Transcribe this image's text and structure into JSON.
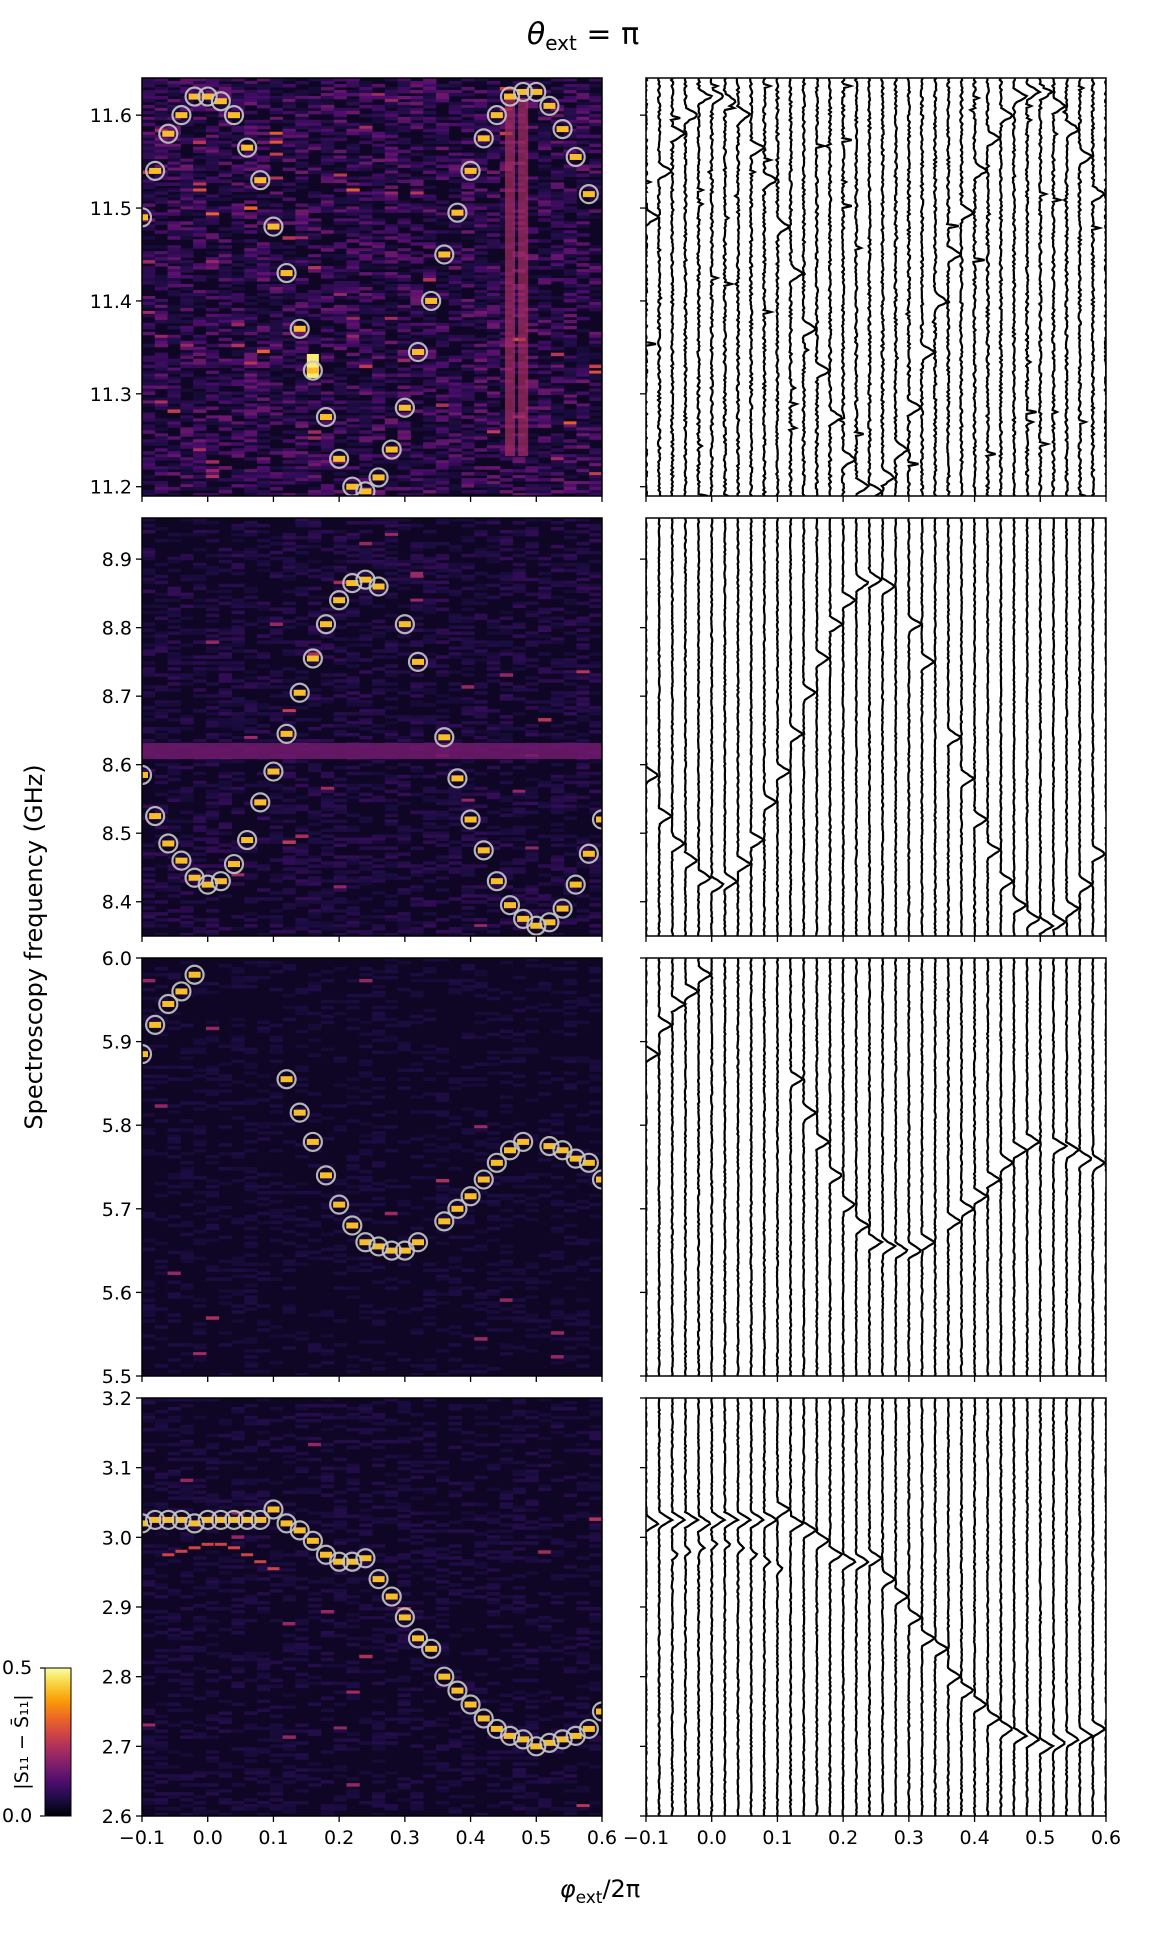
{
  "figure": {
    "title_theta": "θ",
    "title_sub": "ext",
    "title_eq": " = π",
    "ylabel": "Spectroscopy frequency (GHz)",
    "xlabel_phi": "φ",
    "xlabel_sub": "ext",
    "xlabel_rest": "/2π"
  },
  "colorbar": {
    "label": "|S₁₁ − S̄₁₁|",
    "min_label": "0.0",
    "max_label": "0.5",
    "vmin": 0.0,
    "vmax": 0.5,
    "stops": [
      "#000004",
      "#1b0c41",
      "#4a0c6b",
      "#781c6d",
      "#a52c60",
      "#cf4446",
      "#ed6925",
      "#fb9b06",
      "#f7d13d",
      "#fcffa4"
    ]
  },
  "colors": {
    "heatmap_bg": "#1a0b2e",
    "marker_edge": "#c8c8c8",
    "trace": "#000000"
  },
  "chart_data": [
    {
      "type": "heatmap",
      "panel": "top",
      "xlim": [
        -0.1,
        0.6
      ],
      "ylim": [
        11.19,
        11.64
      ],
      "x_ticks": [
        -0.1,
        0.0,
        0.1,
        0.2,
        0.3,
        0.4,
        0.5,
        0.6
      ],
      "y_ticks": [
        11.2,
        11.3,
        11.4,
        11.5,
        11.6
      ],
      "y_tick_labels": [
        "11.2",
        "11.3",
        "11.4",
        "11.5",
        "11.6"
      ],
      "noise_level": 0.75,
      "resonance_x": [
        -0.1,
        -0.08,
        -0.06,
        -0.04,
        -0.02,
        0.0,
        0.02,
        0.04,
        0.06,
        0.08,
        0.1,
        0.12,
        0.14,
        0.16,
        0.18,
        0.2,
        0.22,
        0.24,
        0.26,
        0.28,
        0.3,
        0.32,
        0.34,
        0.36,
        0.38,
        0.4,
        0.42,
        0.44,
        0.46,
        0.48,
        0.5,
        0.52,
        0.54,
        0.56,
        0.58,
        0.6
      ],
      "resonance_y": [
        11.49,
        11.54,
        11.58,
        11.6,
        11.62,
        11.62,
        11.615,
        11.6,
        11.565,
        11.53,
        11.48,
        11.43,
        11.37,
        11.325,
        11.275,
        11.23,
        11.2,
        11.195,
        11.21,
        11.24,
        11.285,
        11.345,
        11.4,
        11.45,
        11.495,
        11.54,
        11.575,
        11.6,
        11.62,
        11.625,
        11.625,
        11.61,
        11.585,
        11.555,
        11.515,
        null
      ],
      "bright_columns": [
        0.46,
        0.48
      ],
      "bright_spot": {
        "x": 0.16,
        "y": 11.33
      }
    },
    {
      "type": "heatmap",
      "panel": "second",
      "xlim": [
        -0.1,
        0.6
      ],
      "ylim": [
        8.35,
        8.96
      ],
      "x_ticks": [
        -0.1,
        0.0,
        0.1,
        0.2,
        0.3,
        0.4,
        0.5,
        0.6
      ],
      "y_ticks": [
        8.4,
        8.5,
        8.6,
        8.7,
        8.8,
        8.9
      ],
      "y_tick_labels": [
        "8.4",
        "8.5",
        "8.6",
        "8.7",
        "8.8",
        "8.9"
      ],
      "noise_level": 0.35,
      "horizontal_band": 8.62,
      "resonance_x": [
        -0.1,
        -0.08,
        -0.06,
        -0.04,
        -0.02,
        0.0,
        0.02,
        0.04,
        0.06,
        0.08,
        0.1,
        0.12,
        0.14,
        0.16,
        0.18,
        0.2,
        0.22,
        0.24,
        0.26,
        0.3,
        0.32,
        0.36,
        0.38,
        0.4,
        0.42,
        0.44,
        0.46,
        0.48,
        0.5,
        0.52,
        0.54,
        0.56,
        0.58,
        0.6
      ],
      "resonance_y": [
        8.585,
        8.525,
        8.485,
        8.46,
        8.435,
        8.425,
        8.43,
        8.455,
        8.49,
        8.545,
        8.59,
        8.645,
        8.705,
        8.755,
        8.805,
        8.84,
        8.865,
        8.87,
        8.86,
        8.805,
        8.75,
        8.64,
        8.58,
        8.52,
        8.475,
        8.43,
        8.395,
        8.375,
        8.365,
        8.37,
        8.39,
        8.425,
        8.47,
        8.52
      ]
    },
    {
      "type": "heatmap",
      "panel": "third",
      "xlim": [
        -0.1,
        0.6
      ],
      "ylim": [
        5.5,
        6.0
      ],
      "x_ticks": [
        -0.1,
        0.0,
        0.1,
        0.2,
        0.3,
        0.4,
        0.5,
        0.6
      ],
      "y_ticks": [
        5.5,
        5.6,
        5.7,
        5.8,
        5.9,
        6.0
      ],
      "y_tick_labels": [
        "5.5",
        "5.6",
        "5.7",
        "5.8",
        "5.9",
        "6.0"
      ],
      "noise_level": 0.2,
      "resonance_x": [
        -0.1,
        -0.08,
        -0.06,
        -0.04,
        -0.02,
        0.12,
        0.14,
        0.16,
        0.18,
        0.2,
        0.22,
        0.24,
        0.26,
        0.28,
        0.3,
        0.32,
        0.36,
        0.38,
        0.4,
        0.42,
        0.44,
        0.46,
        0.48,
        0.52,
        0.54,
        0.56,
        0.58,
        0.6
      ],
      "resonance_y": [
        5.885,
        5.92,
        5.945,
        5.96,
        5.98,
        5.855,
        5.815,
        5.78,
        5.74,
        5.705,
        5.68,
        5.66,
        5.655,
        5.65,
        5.65,
        5.66,
        5.685,
        5.7,
        5.715,
        5.735,
        5.755,
        5.77,
        5.78,
        5.775,
        5.77,
        5.76,
        5.755,
        5.735
      ]
    },
    {
      "type": "heatmap",
      "panel": "bottom",
      "xlim": [
        -0.1,
        0.6
      ],
      "ylim": [
        2.6,
        3.2
      ],
      "x_ticks": [
        -0.1,
        0.0,
        0.1,
        0.2,
        0.3,
        0.4,
        0.5,
        0.6
      ],
      "x_tick_labels": [
        "−0.1",
        "0.0",
        "0.1",
        "0.2",
        "0.3",
        "0.4",
        "0.5",
        "0.6"
      ],
      "y_ticks": [
        2.6,
        2.7,
        2.8,
        2.9,
        3.0,
        3.1,
        3.2
      ],
      "y_tick_labels": [
        "2.6",
        "2.7",
        "2.8",
        "2.9",
        "3.0",
        "3.1",
        "3.2"
      ],
      "noise_level": 0.25,
      "resonance_x": [
        -0.1,
        -0.08,
        -0.06,
        -0.04,
        -0.02,
        0.0,
        0.02,
        0.04,
        0.06,
        0.08,
        0.1,
        0.12,
        0.14,
        0.16,
        0.18,
        0.2,
        0.22,
        0.24,
        0.26,
        0.28,
        0.3,
        0.32,
        0.34,
        0.36,
        0.38,
        0.4,
        0.42,
        0.44,
        0.46,
        0.48,
        0.5,
        0.52,
        0.54,
        0.56,
        0.58,
        0.6
      ],
      "resonance_y": [
        3.02,
        3.025,
        3.025,
        3.025,
        3.02,
        3.025,
        3.025,
        3.025,
        3.025,
        3.025,
        3.04,
        3.02,
        3.01,
        2.995,
        2.975,
        2.965,
        2.965,
        2.97,
        2.94,
        2.915,
        2.885,
        2.855,
        2.84,
        2.8,
        2.78,
        2.76,
        2.74,
        2.725,
        2.715,
        2.71,
        2.7,
        2.705,
        2.71,
        2.715,
        2.725,
        2.75
      ],
      "secondary_x": [
        -0.06,
        -0.04,
        -0.02,
        0.0,
        0.02,
        0.04,
        0.06,
        0.08,
        0.1
      ],
      "secondary_y": [
        2.975,
        2.98,
        2.985,
        2.99,
        2.99,
        2.985,
        2.975,
        2.965,
        2.955
      ]
    }
  ],
  "traces": {
    "type": "line",
    "columns": 36,
    "x_ticks": [
      -0.1,
      0.0,
      0.1,
      0.2,
      0.3,
      0.4,
      0.5,
      0.6
    ],
    "x_tick_labels": [
      "−0.1",
      "0.0",
      "0.1",
      "0.2",
      "0.3",
      "0.4",
      "0.5",
      "0.6"
    ]
  }
}
